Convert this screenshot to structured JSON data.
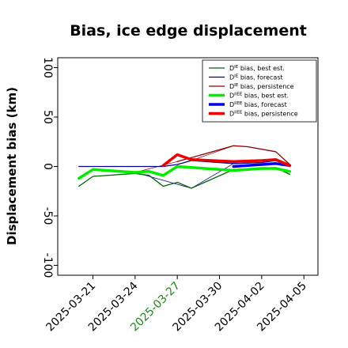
{
  "chart_data": {
    "type": "line",
    "title": "Bias, ice edge displacement",
    "xlabel": "",
    "ylabel": "Displacement bias (km)",
    "ylim": [
      -110,
      110
    ],
    "y_ticks": [
      100,
      50,
      0,
      -50,
      -100
    ],
    "x_ticks": [
      {
        "date": "2025-03-21",
        "label": "2025-03-21",
        "color": "#000000"
      },
      {
        "date": "2025-03-24",
        "label": "2025-03-24",
        "color": "#000000"
      },
      {
        "date": "2025-03-27",
        "label": "2025-03-27",
        "color": "#1a8a1a"
      },
      {
        "date": "2025-03-30",
        "label": "2025-03-30",
        "color": "#000000"
      },
      {
        "date": "2025-04-02",
        "label": "2025-04-02",
        "color": "#000000"
      },
      {
        "date": "2025-04-05",
        "label": "2025-04-05",
        "color": "#000000"
      }
    ],
    "xlim": [
      "2025-03-18 12:00",
      "2025-04-06"
    ],
    "legend_position": "top-right",
    "series": [
      {
        "name": "D^IE bias, best est.",
        "legend_sup": "IE",
        "legend_rest": " bias, best est.",
        "color": "#006400",
        "width": 1.3,
        "points": [
          [
            "2025-03-20",
            -20
          ],
          [
            "2025-03-21",
            -10
          ],
          [
            "2025-03-24",
            -7
          ],
          [
            "2025-03-25",
            -9
          ],
          [
            "2025-03-26",
            -20
          ],
          [
            "2025-03-27",
            -16
          ],
          [
            "2025-03-28",
            -22
          ],
          [
            "2025-03-31",
            -3
          ],
          [
            "2025-04-02",
            -2
          ],
          [
            "2025-04-03",
            -1
          ],
          [
            "2025-04-04",
            -8
          ]
        ]
      },
      {
        "name": "D^IE bias, forecast",
        "legend_sup": "IE",
        "legend_rest": " bias, forecast",
        "color": "#00008b",
        "width": 1.3,
        "points": [
          [
            "2025-03-20",
            0
          ],
          [
            "2025-03-21",
            0
          ],
          [
            "2025-03-24",
            0
          ],
          [
            "2025-03-26",
            0
          ],
          [
            "2025-03-27",
            2
          ],
          [
            "2025-03-28",
            6
          ],
          [
            "2025-03-31",
            3
          ],
          [
            "2025-04-02",
            4
          ],
          [
            "2025-04-03",
            6
          ],
          [
            "2025-04-04",
            0
          ]
        ]
      },
      {
        "name": "D^IE bias, persistence",
        "legend_sup": "IE",
        "legend_rest": " bias, persistence",
        "color": "#8b0000",
        "width": 1.3,
        "points": [
          [
            "2025-03-27",
            5
          ],
          [
            "2025-03-31",
            21
          ],
          [
            "2025-04-01",
            20
          ],
          [
            "2025-04-03",
            15
          ],
          [
            "2025-04-04",
            2
          ]
        ]
      },
      {
        "name": "D^IIEE bias, best est.",
        "legend_sup": "IIEE",
        "legend_rest": " bias, best est.",
        "color": "#00ee00",
        "width": 3.5,
        "points": [
          [
            "2025-03-20",
            -12
          ],
          [
            "2025-03-21",
            -3
          ],
          [
            "2025-03-24",
            -6
          ],
          [
            "2025-03-25",
            -5
          ],
          [
            "2025-03-26",
            -9
          ],
          [
            "2025-03-27",
            0
          ],
          [
            "2025-03-31",
            -4
          ],
          [
            "2025-04-02",
            -2
          ],
          [
            "2025-04-03",
            -2
          ],
          [
            "2025-04-04",
            -5
          ]
        ]
      },
      {
        "name": "D^IIEE bias, forecast",
        "legend_sup": "IIEE",
        "legend_rest": " bias, forecast",
        "color": "#0000ee",
        "width": 3.5,
        "points": [
          [
            "2025-03-31",
            0
          ],
          [
            "2025-04-02",
            2
          ],
          [
            "2025-04-03",
            3
          ],
          [
            "2025-04-04",
            1
          ]
        ]
      },
      {
        "name": "D^IIEE bias, persistence",
        "legend_sup": "IIEE",
        "legend_rest": " bias, persistence",
        "color": "#ee0000",
        "width": 3.5,
        "points": [
          [
            "2025-03-26",
            1
          ],
          [
            "2025-03-27",
            12
          ],
          [
            "2025-03-28",
            7
          ],
          [
            "2025-03-31",
            5
          ],
          [
            "2025-04-02",
            6
          ],
          [
            "2025-04-03",
            7
          ],
          [
            "2025-04-04",
            1
          ]
        ]
      }
    ],
    "thin_connectors": [
      {
        "color": "#00008b",
        "points": [
          [
            "2025-03-24",
            -6
          ],
          [
            "2025-03-28",
            -22
          ]
        ]
      },
      {
        "color": "#8b0000",
        "points": [
          [
            "2025-03-24",
            -6
          ],
          [
            "2025-03-27",
            5
          ]
        ]
      },
      {
        "color": "#006400",
        "points": [
          [
            "2025-03-28",
            -22
          ],
          [
            "2025-03-31",
            -3
          ]
        ]
      },
      {
        "color": "#00008b",
        "points": [
          [
            "2025-03-28",
            -22
          ],
          [
            "2025-03-31",
            3
          ]
        ]
      },
      {
        "color": "#8b0000",
        "points": [
          [
            "2025-03-28",
            6
          ],
          [
            "2025-03-31",
            21
          ]
        ]
      }
    ]
  }
}
